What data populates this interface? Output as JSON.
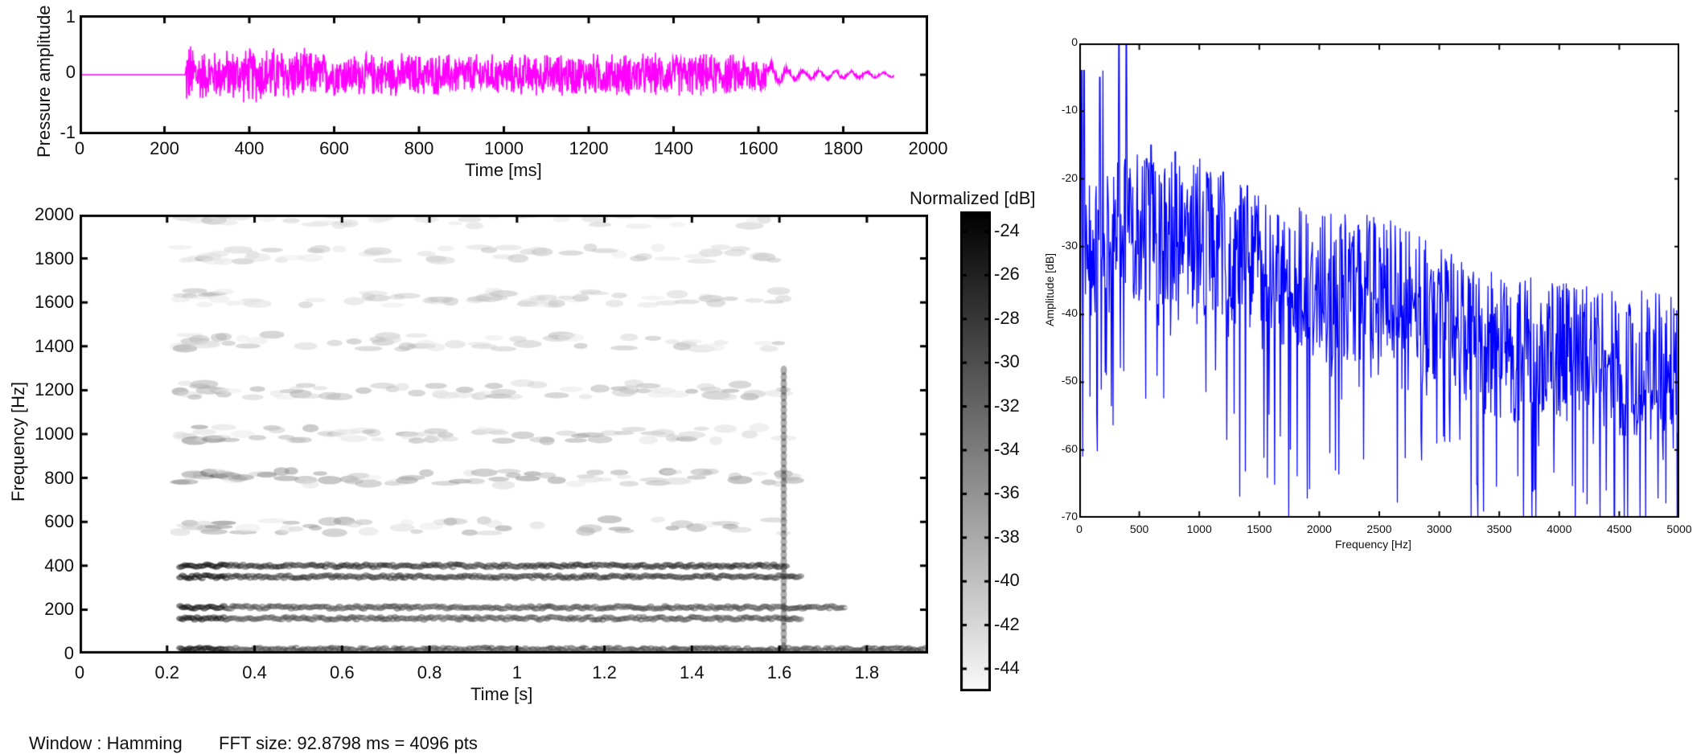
{
  "colors": {
    "waveform": "#ff00ff",
    "spectrum": "#0000ff",
    "axis": "#000000",
    "background": "#ffffff"
  },
  "footer": {
    "window": "Window : Hamming",
    "fft": "FFT size: 92.8798 ms = 4096 pts"
  },
  "chart_data": [
    {
      "id": "waveform",
      "type": "line",
      "title": "",
      "xlabel": "Time [ms]",
      "ylabel": "Pressure amplitude",
      "xlim": [
        0,
        2000
      ],
      "ylim": [
        -1,
        1
      ],
      "xticks": [
        "0",
        "200",
        "400",
        "600",
        "800",
        "1000",
        "1200",
        "1400",
        "1600",
        "1800",
        "2000"
      ],
      "yticks": [
        "-1",
        "0",
        "1"
      ],
      "color": "#ff00ff",
      "series_description": "Silence 0-250 ms, burst onset at ~250 ms, noisy signal with envelope ~±0.45 until ~1620 ms, decaying low-amplitude tail ~±0.1 until ~1920 ms",
      "envelope": {
        "t_ms": [
          0,
          249,
          252,
          300,
          450,
          600,
          800,
          1000,
          1200,
          1400,
          1600,
          1620,
          1680,
          1800,
          1920
        ],
        "amp": [
          0,
          0,
          0.65,
          0.45,
          0.55,
          0.4,
          0.4,
          0.38,
          0.4,
          0.4,
          0.38,
          0.3,
          0.12,
          0.09,
          0.05
        ]
      },
      "grid": false
    },
    {
      "id": "spectrogram",
      "type": "heatmap",
      "title": "",
      "xlabel": "Time [s]",
      "ylabel": "Frequency [Hz]",
      "xlim": [
        0,
        1.94
      ],
      "ylim": [
        0,
        2000
      ],
      "xticks": [
        "0",
        "0.2",
        "0.4",
        "0.6",
        "0.8",
        "1",
        "1.2",
        "1.4",
        "1.6",
        "1.8"
      ],
      "yticks": [
        "0",
        "200",
        "400",
        "600",
        "800",
        "1000",
        "1200",
        "1400",
        "1600",
        "1800",
        "2000"
      ],
      "colorbar": {
        "label": "Normalized [dB]",
        "ticks": [
          "-24",
          "-26",
          "-28",
          "-30",
          "-32",
          "-34",
          "-36",
          "-38",
          "-40",
          "-42",
          "-44"
        ],
        "range": [
          -45,
          -23
        ],
        "colormap": "gray_r"
      },
      "bands": [
        {
          "freq": 20,
          "start": 0.23,
          "end": 1.94,
          "strength": 0.85
        },
        {
          "freq": 160,
          "start": 0.23,
          "end": 1.65,
          "strength": 0.8
        },
        {
          "freq": 210,
          "start": 0.23,
          "end": 1.75,
          "strength": 0.8
        },
        {
          "freq": 350,
          "start": 0.23,
          "end": 1.65,
          "strength": 0.9
        },
        {
          "freq": 400,
          "start": 0.23,
          "end": 1.62,
          "strength": 0.95
        },
        {
          "freq": 580,
          "start": 0.23,
          "end": 1.62,
          "strength": 0.5
        },
        {
          "freq": 800,
          "start": 0.23,
          "end": 1.65,
          "strength": 0.55
        },
        {
          "freq": 1000,
          "start": 0.23,
          "end": 1.62,
          "strength": 0.45
        },
        {
          "freq": 1200,
          "start": 0.23,
          "end": 1.62,
          "strength": 0.45
        },
        {
          "freq": 1420,
          "start": 0.23,
          "end": 1.62,
          "strength": 0.35
        },
        {
          "freq": 1620,
          "start": 0.23,
          "end": 1.62,
          "strength": 0.3
        },
        {
          "freq": 1820,
          "start": 0.23,
          "end": 1.62,
          "strength": 0.3
        },
        {
          "freq": 1980,
          "start": 0.23,
          "end": 1.62,
          "strength": 0.25
        }
      ],
      "grid": false
    },
    {
      "id": "spectrum",
      "type": "line",
      "title": "",
      "xlabel": "Frequency [Hz]",
      "ylabel": "Amplitude [dB]",
      "xlim": [
        0,
        5000
      ],
      "ylim": [
        -70,
        0
      ],
      "xticks": [
        "0",
        "500",
        "1000",
        "1500",
        "2000",
        "2500",
        "3000",
        "3500",
        "4000",
        "4500",
        "5000"
      ],
      "yticks": [
        "0",
        "-10",
        "-20",
        "-30",
        "-40",
        "-50",
        "-60",
        "-70"
      ],
      "color": "#0000ff",
      "series_description": "Dense FFT magnitude spectrum; peaks reach 0 dB near 330-400 Hz, -4 dB near 50 Hz, upper envelope decays from ~-15 dB at 1000 Hz to ~-37 dB at 5000 Hz, troughs frequently hit -70 dB",
      "peaks": [
        {
          "f": 20,
          "db": -4
        },
        {
          "f": 40,
          "db": -4
        },
        {
          "f": 170,
          "db": -5
        },
        {
          "f": 200,
          "db": -4
        },
        {
          "f": 330,
          "db": 0
        },
        {
          "f": 390,
          "db": 0
        },
        {
          "f": 560,
          "db": -17
        },
        {
          "f": 600,
          "db": -15
        },
        {
          "f": 800,
          "db": -16
        },
        {
          "f": 1000,
          "db": -17
        },
        {
          "f": 1200,
          "db": -19
        },
        {
          "f": 1400,
          "db": -21
        }
      ],
      "upper_envelope": {
        "f": [
          0,
          500,
          1000,
          1500,
          2000,
          2500,
          3000,
          3500,
          4000,
          4500,
          5000
        ],
        "db": [
          -20,
          -16,
          -18,
          -22,
          -25,
          -25,
          -30,
          -34,
          -35,
          -36,
          -37
        ]
      },
      "grid": false
    }
  ]
}
